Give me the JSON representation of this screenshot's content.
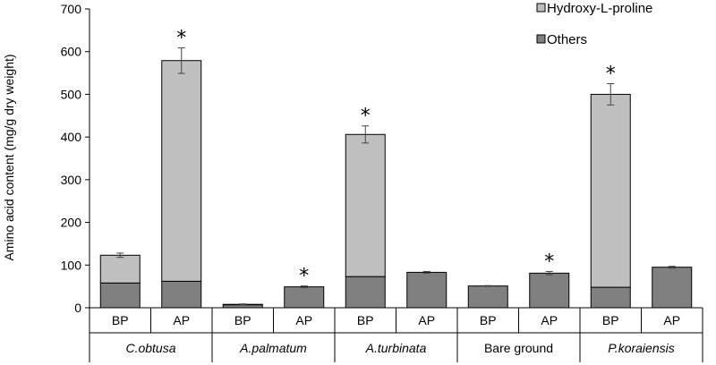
{
  "chart_data": {
    "type": "bar",
    "stacked": true,
    "ylabel": "Amino acid content (mg/g dry weight)",
    "ylim": [
      0,
      700
    ],
    "yticks": [
      0,
      100,
      200,
      300,
      400,
      500,
      600,
      700
    ],
    "grid": false,
    "legend_position": "top-right",
    "groups": [
      {
        "label": "C.obtusa",
        "italic": true
      },
      {
        "label": "A.palmatum",
        "italic": true
      },
      {
        "label": "A.turbinata",
        "italic": true
      },
      {
        "label": "Bare ground",
        "italic": false
      },
      {
        "label": "P.koraiensis",
        "italic": true
      }
    ],
    "categories": [
      "BP",
      "AP",
      "BP",
      "AP",
      "BP",
      "AP",
      "BP",
      "AP",
      "BP",
      "AP"
    ],
    "series": [
      {
        "name": "Others",
        "color": "#808080",
        "values": [
          58,
          62,
          7,
          49,
          73,
          83,
          51,
          81,
          48,
          95
        ]
      },
      {
        "name": "Hydroxy-L-proline",
        "color": "#bfbfbf",
        "values": [
          65,
          517,
          1,
          0,
          333,
          0,
          0,
          0,
          452,
          0
        ]
      }
    ],
    "error": [
      5,
      30,
      1,
      2,
      20,
      2,
      1,
      4,
      25,
      2
    ],
    "significance": [
      "",
      "*",
      "",
      "*",
      "*",
      "",
      "",
      "*",
      "*",
      ""
    ]
  }
}
